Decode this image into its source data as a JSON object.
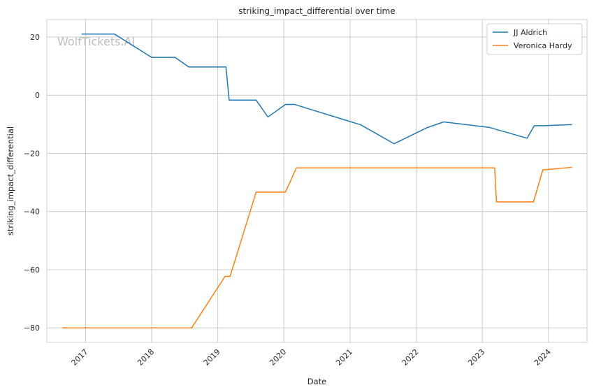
{
  "watermark": "WolfTickets.AI",
  "chart_data": {
    "type": "line",
    "title": "striking_impact_differential over time",
    "xlabel": "Date",
    "ylabel": "striking_impact_differential",
    "x_type": "date",
    "xlim": [
      "2016-06-01",
      "2024-08-01"
    ],
    "ylim": [
      -85,
      26
    ],
    "x_ticks": [
      {
        "date": "2017-01-01",
        "label": "2017"
      },
      {
        "date": "2018-01-01",
        "label": "2018"
      },
      {
        "date": "2019-01-01",
        "label": "2019"
      },
      {
        "date": "2020-01-01",
        "label": "2020"
      },
      {
        "date": "2021-01-01",
        "label": "2021"
      },
      {
        "date": "2022-01-01",
        "label": "2022"
      },
      {
        "date": "2023-01-01",
        "label": "2023"
      },
      {
        "date": "2024-01-01",
        "label": "2024"
      }
    ],
    "y_ticks": [
      {
        "value": 20,
        "label": "20"
      },
      {
        "value": 0,
        "label": "0"
      },
      {
        "value": -20,
        "label": "−20"
      },
      {
        "value": -40,
        "label": "−40"
      },
      {
        "value": -60,
        "label": "−60"
      },
      {
        "value": -80,
        "label": "−80"
      }
    ],
    "grid": true,
    "legend_position": "top-right",
    "series": [
      {
        "name": "JJ Aldrich",
        "color": "#1f77b4",
        "points": [
          [
            "2016-12-10",
            21
          ],
          [
            "2017-06-10",
            21
          ],
          [
            "2018-01-01",
            13
          ],
          [
            "2018-05-10",
            13
          ],
          [
            "2018-07-25",
            9.7
          ],
          [
            "2019-02-15",
            9.7
          ],
          [
            "2019-03-05",
            -1.7
          ],
          [
            "2019-08-01",
            -1.7
          ],
          [
            "2019-10-05",
            -7.5
          ],
          [
            "2020-01-10",
            -3.2
          ],
          [
            "2020-03-01",
            -3.2
          ],
          [
            "2021-03-01",
            -10.2
          ],
          [
            "2021-09-01",
            -16.7
          ],
          [
            "2022-03-01",
            -11.2
          ],
          [
            "2022-06-01",
            -9.2
          ],
          [
            "2023-02-10",
            -11.1
          ],
          [
            "2023-09-05",
            -14.8
          ],
          [
            "2023-10-15",
            -10.5
          ],
          [
            "2023-12-10",
            -10.5
          ],
          [
            "2024-05-10",
            -10.1
          ]
        ]
      },
      {
        "name": "Veronica Hardy",
        "color": "#ff7f0e",
        "points": [
          [
            "2016-08-25",
            -80
          ],
          [
            "2018-08-10",
            -80
          ],
          [
            "2019-02-10",
            -62.3
          ],
          [
            "2019-03-10",
            -62.3
          ],
          [
            "2019-08-01",
            -33.3
          ],
          [
            "2020-01-10",
            -33.3
          ],
          [
            "2020-03-10",
            -25
          ],
          [
            "2023-03-10",
            -25
          ],
          [
            "2023-03-20",
            -36.7
          ],
          [
            "2023-10-10",
            -36.7
          ],
          [
            "2023-12-01",
            -25.7
          ],
          [
            "2024-05-10",
            -24.8
          ]
        ]
      }
    ]
  }
}
